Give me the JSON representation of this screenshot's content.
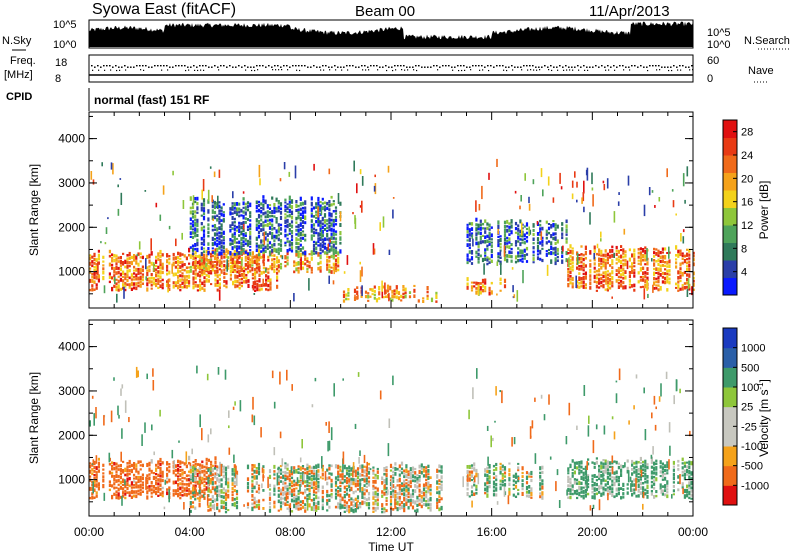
{
  "header": {
    "station": "Syowa East (fitACF)",
    "beam": "Beam 00",
    "date": "11/Apr/2013"
  },
  "status_panels": {
    "nsky_label": "N.Sky",
    "nsky_tick_top": "10^5",
    "nsky_tick_bottom": "10^0",
    "nsearch_label": "N.Search",
    "nsearch_tick_top": "10^5",
    "nsearch_tick_bottom": "10^0",
    "freq_label_line1": "Freq.",
    "freq_label_line2": "[MHz]",
    "freq_tick_top": "18",
    "freq_tick_bottom": "8",
    "nave_label": "Nave",
    "nave_tick_top": "60",
    "nave_tick_bottom": "0",
    "cpid_label": "CPID",
    "cpid_value": "normal (fast) 151 RF"
  },
  "colors": {
    "power_scale": [
      "#0a1aff",
      "#2a3ea8",
      "#2f7a5a",
      "#4ea35a",
      "#8ec63a",
      "#f3d21a",
      "#f5a21a",
      "#f06a1a",
      "#e83a14",
      "#e01010"
    ],
    "velocity_scale": [
      "#e01010",
      "#f06a1a",
      "#f5a21a",
      "#c8c8c0",
      "#c8c8c0",
      "#8ec63a",
      "#3e9a6a",
      "#2a5fa8",
      "#1a3ac0"
    ],
    "ground_scatter": "#c0c0b8"
  },
  "chart_data": [
    {
      "type": "heatmap",
      "title": "",
      "xlabel": "",
      "ylabel": "Slant Range [km]",
      "x_ticks": [
        "00:00",
        "04:00",
        "08:00",
        "12:00",
        "16:00",
        "20:00",
        "00:00"
      ],
      "xlim_hours": [
        0,
        24
      ],
      "y_ticks": [
        1000,
        2000,
        3000,
        4000
      ],
      "ylim": [
        180,
        4600
      ],
      "colorbar": {
        "label": "Power [dB]",
        "ticks": [
          "4",
          "8",
          "12",
          "16",
          "20",
          "24",
          "28"
        ],
        "range": [
          0,
          30
        ]
      },
      "dominant_echo_regions": [
        {
          "t_start": 0.0,
          "t_end": 7.5,
          "range_low": 600,
          "range_high": 1400,
          "power_db": 22
        },
        {
          "t_start": 4.0,
          "t_end": 10.0,
          "range_low": 1000,
          "range_high": 1400,
          "power_db": 20
        },
        {
          "t_start": 10.0,
          "t_end": 14.0,
          "range_low": 350,
          "range_high": 600,
          "power_db": 20
        },
        {
          "t_start": 4.0,
          "t_end": 10.0,
          "range_low": 1400,
          "range_high": 2600,
          "power_db": 6
        },
        {
          "t_start": 15.0,
          "t_end": 16.5,
          "range_low": 500,
          "range_high": 800,
          "power_db": 22
        },
        {
          "t_start": 15.0,
          "t_end": 19.0,
          "range_low": 1200,
          "range_high": 2100,
          "power_db": 6
        },
        {
          "t_start": 19.0,
          "t_end": 24.0,
          "range_low": 600,
          "range_high": 1500,
          "power_db": 22
        }
      ]
    },
    {
      "type": "heatmap",
      "title": "",
      "xlabel": "Time UT",
      "ylabel": "Slant Range [km]",
      "x_ticks": [
        "00:00",
        "04:00",
        "08:00",
        "12:00",
        "16:00",
        "20:00",
        "00:00"
      ],
      "xlim_hours": [
        0,
        24
      ],
      "y_ticks": [
        1000,
        2000,
        3000,
        4000
      ],
      "ylim": [
        180,
        4600
      ],
      "colorbar": {
        "label": "Velocity [m s^-1]",
        "ticks": [
          "1000",
          "500",
          "100",
          "25",
          "-25",
          "-100",
          "-500",
          "-1000"
        ]
      },
      "dominant_echo_regions": [
        {
          "t_start": 0.0,
          "t_end": 5.0,
          "range_low": 600,
          "range_high": 1400,
          "velocity": -300
        },
        {
          "t_start": 4.0,
          "t_end": 14.0,
          "range_low": 300,
          "range_high": 1300,
          "velocity": 0
        },
        {
          "t_start": 15.0,
          "t_end": 18.0,
          "range_low": 600,
          "range_high": 1300,
          "velocity": 100
        },
        {
          "t_start": 19.0,
          "t_end": 24.0,
          "range_low": 600,
          "range_high": 1400,
          "velocity": 200
        }
      ]
    }
  ]
}
